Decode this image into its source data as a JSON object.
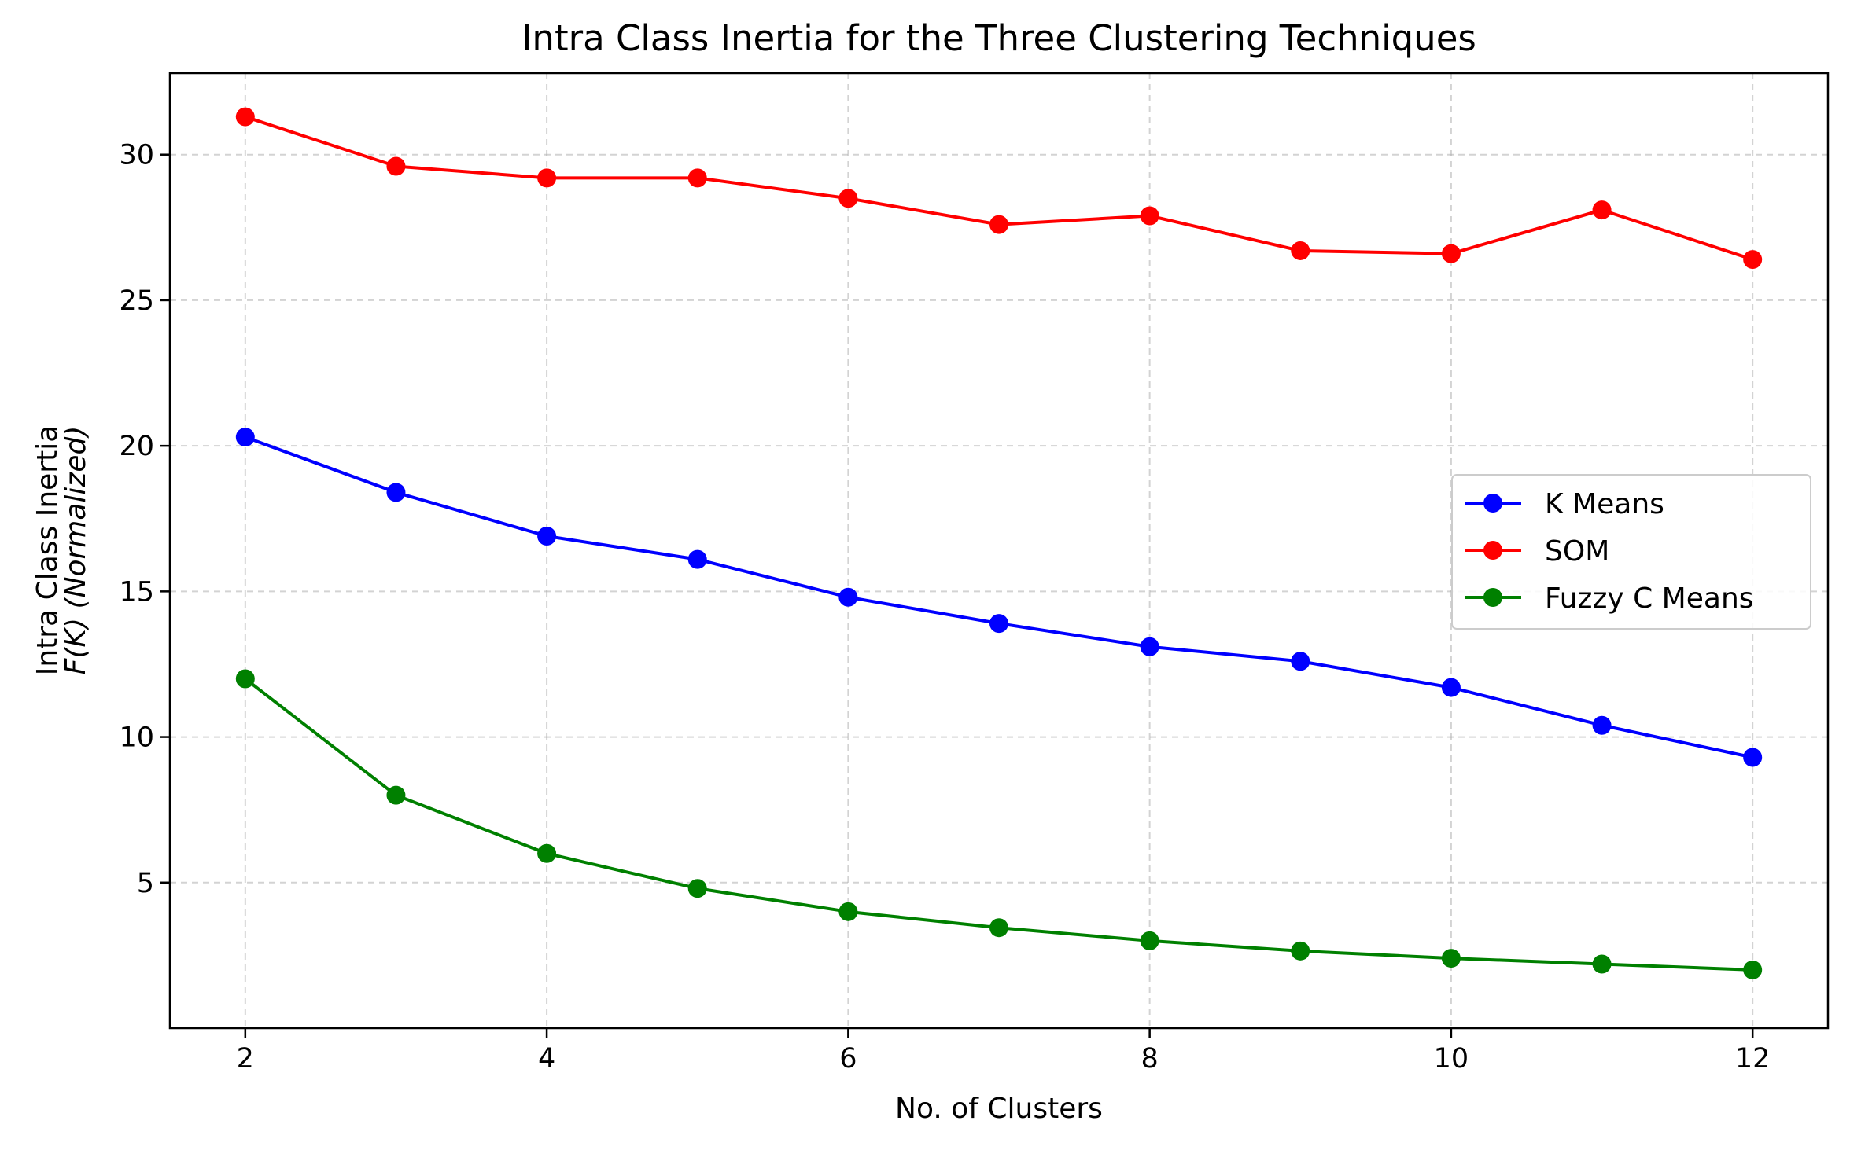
{
  "chart_data": {
    "type": "line",
    "title": "Intra Class Inertia for the Three Clustering Techniques",
    "xlabel": "No. of Clusters",
    "ylabel_line1": "Intra Class Inertia",
    "ylabel_line2": "F(K) (Normalized)",
    "x": [
      2,
      3,
      4,
      5,
      6,
      7,
      8,
      9,
      10,
      11,
      12
    ],
    "xlim": [
      1.5,
      12.5
    ],
    "ylim": [
      0,
      32.8
    ],
    "xticks": [
      2,
      4,
      6,
      8,
      10,
      12
    ],
    "yticks": [
      5,
      10,
      15,
      20,
      25,
      30
    ],
    "grid": true,
    "legend_position": "center-right",
    "series": [
      {
        "name": "K Means",
        "color": "#0000ff",
        "values": [
          20.3,
          18.4,
          16.9,
          16.1,
          14.8,
          13.9,
          13.1,
          12.6,
          11.7,
          10.4,
          9.3
        ]
      },
      {
        "name": "SOM",
        "color": "#ff0000",
        "values": [
          31.3,
          29.6,
          29.2,
          29.2,
          28.5,
          27.6,
          27.9,
          26.7,
          26.6,
          28.1,
          26.4
        ]
      },
      {
        "name": "Fuzzy C Means",
        "color": "#008000",
        "values": [
          12.0,
          8.0,
          6.0,
          4.8,
          4.0,
          3.45,
          3.0,
          2.65,
          2.4,
          2.2,
          2.0
        ]
      }
    ]
  }
}
